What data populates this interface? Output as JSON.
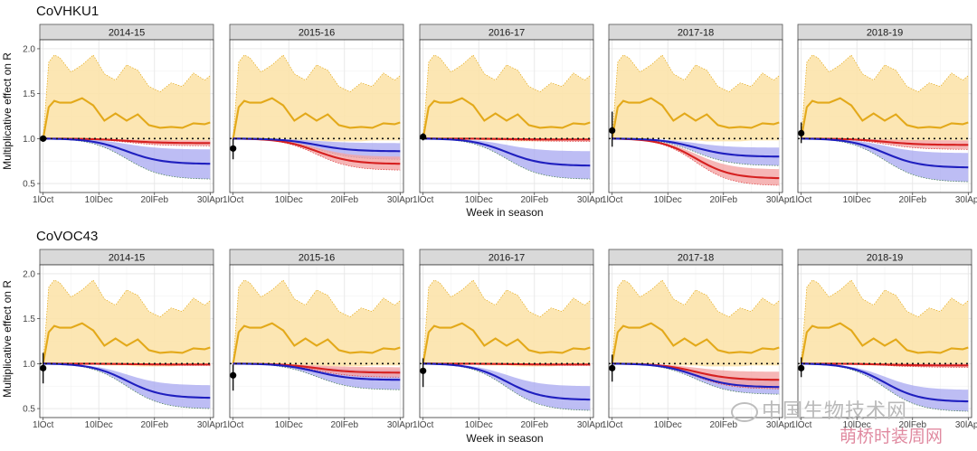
{
  "chart_data": {
    "type": "line",
    "figure": {
      "y_axis_label": "Multiplicative effect on R",
      "x_axis_label": "Week in season",
      "x_tick_labels": [
        "1lOct",
        "10lDec",
        "20lFeb",
        "30lApr"
      ],
      "x_ticks_week": [
        0,
        10,
        20,
        30
      ],
      "x_range_week": [
        -0.6,
        30.6
      ],
      "y_range": [
        0.4,
        2.1
      ],
      "y_ticks": [
        0.5,
        1.0,
        1.5,
        2.0
      ],
      "y_tick_labels": [
        "0.5",
        "1.0",
        "1.5",
        "2.0"
      ],
      "reference_line_y": 1.0,
      "grid": true,
      "colors": {
        "gold": "#e3a91a",
        "gold_band": "#fbe2a6",
        "blue": "#1f1fbf",
        "blue_band": "#a7a7f0",
        "red": "#d62020",
        "red_band": "#f4a4a4",
        "band_edge": "#3d7a4a",
        "dotted_ref": "#111111"
      }
    },
    "gold_series": {
      "week": [
        0,
        1,
        2,
        3,
        5,
        7,
        9,
        11,
        13,
        15,
        17,
        19,
        21,
        23,
        25,
        27,
        29,
        30
      ],
      "value": [
        1.0,
        1.35,
        1.42,
        1.4,
        1.4,
        1.45,
        1.37,
        1.2,
        1.28,
        1.2,
        1.27,
        1.15,
        1.12,
        1.13,
        1.12,
        1.17,
        1.16,
        1.18
      ],
      "upper": [
        1.0,
        1.85,
        1.93,
        1.9,
        1.74,
        1.82,
        1.93,
        1.72,
        1.65,
        1.82,
        1.76,
        1.58,
        1.52,
        1.62,
        1.58,
        1.73,
        1.65,
        1.7
      ],
      "lower": [
        1.0,
        1.0,
        1.0,
        1.0,
        1.0,
        1.0,
        1.0,
        0.98,
        0.98,
        0.98,
        0.97,
        0.97,
        0.97,
        0.97,
        0.98,
        0.98,
        0.98,
        0.98
      ]
    },
    "rows": [
      {
        "name": "CoVHKU1",
        "panels": [
          {
            "season": "2014-15",
            "initial_point": {
              "value": 1.0,
              "lower": 0.98,
              "upper": 1.02
            },
            "blue": {
              "end": 0.72,
              "end_lower": 0.55,
              "end_upper": 0.88
            },
            "red": {
              "end": 0.95,
              "end_lower": 0.92,
              "end_upper": 0.98
            }
          },
          {
            "season": "2015-16",
            "initial_point": {
              "value": 0.89,
              "lower": 0.77,
              "upper": 1.0
            },
            "blue": {
              "end": 0.86,
              "end_lower": 0.77,
              "end_upper": 0.95
            },
            "red": {
              "end": 0.72,
              "end_lower": 0.65,
              "end_upper": 0.8
            }
          },
          {
            "season": "2016-17",
            "initial_point": {
              "value": 1.02,
              "lower": 0.98,
              "upper": 1.06
            },
            "blue": {
              "end": 0.7,
              "end_lower": 0.55,
              "end_upper": 0.86
            },
            "red": {
              "end": 0.99,
              "end_lower": 0.97,
              "end_upper": 1.0
            }
          },
          {
            "season": "2017-18",
            "initial_point": {
              "value": 1.09,
              "lower": 0.91,
              "upper": 1.3
            },
            "blue": {
              "end": 0.8,
              "end_lower": 0.7,
              "end_upper": 0.9
            },
            "red": {
              "end": 0.56,
              "end_lower": 0.48,
              "end_upper": 0.66
            }
          },
          {
            "season": "2018-19",
            "initial_point": {
              "value": 1.06,
              "lower": 0.95,
              "upper": 1.18
            },
            "blue": {
              "end": 0.68,
              "end_lower": 0.52,
              "end_upper": 0.84
            },
            "red": {
              "end": 0.93,
              "end_lower": 0.88,
              "end_upper": 0.98
            }
          }
        ]
      },
      {
        "name": "CoVOC43",
        "panels": [
          {
            "season": "2014-15",
            "initial_point": {
              "value": 0.95,
              "lower": 0.78,
              "upper": 1.12
            },
            "blue": {
              "end": 0.62,
              "end_lower": 0.5,
              "end_upper": 0.76
            },
            "red": {
              "end": 0.99,
              "end_lower": 0.98,
              "end_upper": 1.0
            }
          },
          {
            "season": "2015-16",
            "initial_point": {
              "value": 0.87,
              "lower": 0.7,
              "upper": 0.99
            },
            "blue": {
              "end": 0.82,
              "end_lower": 0.71,
              "end_upper": 0.93
            },
            "red": {
              "end": 0.9,
              "end_lower": 0.85,
              "end_upper": 0.96
            }
          },
          {
            "season": "2016-17",
            "initial_point": {
              "value": 0.92,
              "lower": 0.74,
              "upper": 1.06
            },
            "blue": {
              "end": 0.6,
              "end_lower": 0.48,
              "end_upper": 0.75
            },
            "red": {
              "end": 0.99,
              "end_lower": 0.98,
              "end_upper": 1.0
            }
          },
          {
            "season": "2017-18",
            "initial_point": {
              "value": 0.95,
              "lower": 0.8,
              "upper": 1.1
            },
            "blue": {
              "end": 0.74,
              "end_lower": 0.66,
              "end_upper": 0.83
            },
            "red": {
              "end": 0.82,
              "end_lower": 0.72,
              "end_upper": 0.91
            }
          },
          {
            "season": "2018-19",
            "initial_point": {
              "value": 0.95,
              "lower": 0.85,
              "upper": 1.07
            },
            "blue": {
              "end": 0.58,
              "end_lower": 0.47,
              "end_upper": 0.71
            },
            "red": {
              "end": 0.98,
              "end_lower": 0.96,
              "end_upper": 1.0
            }
          }
        ]
      }
    ]
  },
  "watermark": {
    "main": "中国生物技术网",
    "sub": "萌桥时装周网"
  }
}
